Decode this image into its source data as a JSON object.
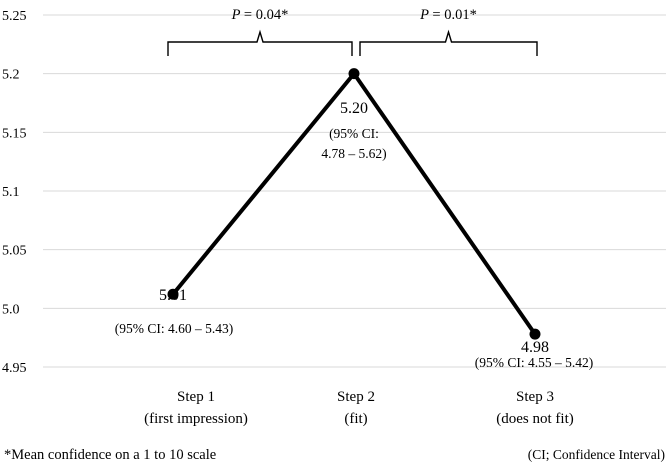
{
  "chart_data": {
    "type": "line",
    "categories": [
      [
        "Step 1",
        "(first impression)"
      ],
      [
        "Step 2",
        "(fit)"
      ],
      [
        "Step 3",
        "(does not fit)"
      ]
    ],
    "values": [
      5.012,
      5.2,
      4.978
    ],
    "value_labels": [
      "5.01",
      "5.20",
      "4.98"
    ],
    "ci_labels": [
      [
        "(95% CI: 4.60 – 5.43)"
      ],
      [
        "(95% CI:",
        "4.78 – 5.62)"
      ],
      [
        "(95% CI: 4.55 – 5.42)"
      ]
    ],
    "ylim": [
      4.95,
      5.25
    ],
    "yticks": [
      "4.95",
      "5.0",
      "5.05",
      "5.1",
      "5.15",
      "5.2",
      "5.25"
    ],
    "grid": true,
    "line_color": "#000000",
    "brackets": [
      {
        "from": 0,
        "to": 1,
        "p_label": "P",
        "p_value": "=  0.04*"
      },
      {
        "from": 1,
        "to": 2,
        "p_label": "P",
        "p_value": "=  0.01*"
      }
    ],
    "footnote_left": "*Mean confidence on a 1 to 10 scale",
    "footnote_right": "(CI; Confidence Interval)"
  }
}
